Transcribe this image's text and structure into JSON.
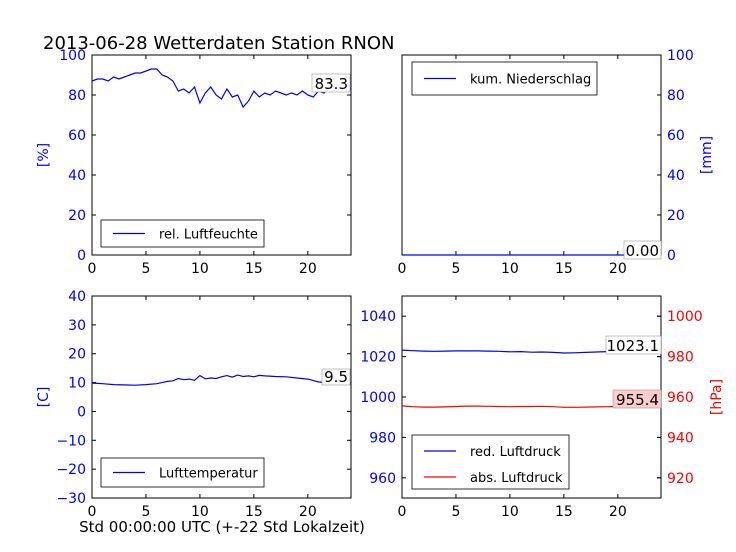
{
  "title": "2013-06-28 Wetterdaten Station RNON",
  "colors": {
    "blue": "#0000ff",
    "red": "#ff0000",
    "black": "#000000"
  },
  "chart_data": [
    {
      "type": "line",
      "id": "humidity",
      "ylabel": "[%]",
      "xlim": [
        0,
        24
      ],
      "ylim": [
        0,
        100
      ],
      "xticks": [
        "0",
        "5",
        "10",
        "15",
        "20"
      ],
      "yticks": [
        "0",
        "20",
        "40",
        "60",
        "80",
        "100"
      ],
      "legend": "lower-left",
      "series": [
        {
          "name": "rel. Luftfeuchte",
          "color": "blue",
          "x": [
            0,
            0.5,
            1,
            1.5,
            2,
            2.5,
            3,
            3.5,
            4,
            4.5,
            5,
            5.5,
            6,
            6.5,
            7,
            7.5,
            8,
            8.5,
            9,
            9.5,
            10,
            10.5,
            11,
            11.5,
            12,
            12.5,
            13,
            13.5,
            14,
            14.5,
            15,
            15.5,
            16,
            16.5,
            17,
            17.5,
            18,
            18.5,
            19,
            19.5,
            20,
            20.5,
            21,
            21.5,
            22,
            22.5,
            23,
            23.5,
            24
          ],
          "y": [
            87,
            88,
            88,
            87,
            89,
            88,
            89,
            90,
            91,
            91,
            92,
            93,
            93,
            90,
            89,
            87,
            82,
            83,
            81,
            84,
            76,
            81,
            84,
            80,
            78,
            83,
            79,
            80,
            74,
            77,
            82,
            79,
            81,
            80,
            82,
            81,
            80,
            81,
            80,
            82,
            80,
            79,
            82,
            81,
            84,
            82,
            83,
            82,
            83.3
          ]
        }
      ],
      "annotation": "83.3"
    },
    {
      "type": "line",
      "id": "precipitation",
      "ylabel": "[mm]",
      "xlim": [
        0,
        24
      ],
      "ylim": [
        0,
        100
      ],
      "xticks": [
        "0",
        "5",
        "10",
        "15",
        "20"
      ],
      "yticks": [
        "0",
        "20",
        "40",
        "60",
        "80",
        "100"
      ],
      "legend": "top-left",
      "series": [
        {
          "name": "kum. Niederschlag",
          "color": "blue",
          "x": [
            0,
            24
          ],
          "y": [
            0,
            0
          ]
        }
      ],
      "annotation": "0.00"
    },
    {
      "type": "line",
      "id": "temperature",
      "ylabel": "[C]",
      "xlabel": "Std 00:00:00 UTC (+-22 Std Lokalzeit)",
      "xlim": [
        0,
        24
      ],
      "ylim": [
        -30,
        40
      ],
      "xticks": [
        "0",
        "5",
        "10",
        "15",
        "20"
      ],
      "yticks": [
        "−30",
        "−20",
        "−10",
        "0",
        "10",
        "20",
        "30",
        "40"
      ],
      "legend": "lower-left",
      "series": [
        {
          "name": "Lufttemperatur",
          "color": "blue",
          "x": [
            0,
            1,
            2,
            3,
            4,
            5,
            6,
            7,
            7.5,
            8,
            8.5,
            9,
            9.5,
            10,
            10.5,
            11,
            11.5,
            12,
            12.5,
            13,
            13.5,
            14,
            14.5,
            15,
            15.5,
            16,
            17,
            18,
            19,
            20,
            21,
            22,
            23,
            24
          ],
          "y": [
            9.8,
            9.6,
            9.3,
            9.2,
            9.1,
            9.3,
            9.6,
            10.4,
            10.6,
            11.4,
            11.0,
            11.2,
            10.8,
            12.4,
            11.3,
            11.6,
            11.4,
            12.0,
            12.4,
            11.9,
            12.6,
            12.1,
            12.3,
            12.0,
            12.5,
            12.3,
            12.1,
            12.0,
            11.6,
            11.2,
            10.2,
            9.9,
            9.6,
            9.5
          ]
        }
      ],
      "annotation": "9.5"
    },
    {
      "type": "line",
      "id": "pressure",
      "ylabel_right": "[hPa]",
      "xlim": [
        0,
        24
      ],
      "ylim_left": [
        950,
        1050
      ],
      "ylim_right": [
        910,
        1010
      ],
      "xticks": [
        "0",
        "5",
        "10",
        "15",
        "20"
      ],
      "yticks_left": [
        "960",
        "980",
        "1000",
        "1020",
        "1040"
      ],
      "yticks_right": [
        "920",
        "940",
        "960",
        "980",
        "1000"
      ],
      "legend": "lower-left",
      "series": [
        {
          "name": "red. Luftdruck",
          "color": "blue",
          "axis": "left",
          "x": [
            0,
            1,
            2,
            3,
            4,
            5,
            6,
            7,
            8,
            9,
            10,
            11,
            12,
            13,
            14,
            15,
            16,
            17,
            18,
            19,
            20,
            21,
            22,
            23,
            24
          ],
          "y": [
            1023.2,
            1022.9,
            1022.7,
            1022.6,
            1022.7,
            1022.8,
            1022.8,
            1022.8,
            1022.7,
            1022.6,
            1022.4,
            1022.5,
            1022.2,
            1022.3,
            1022.1,
            1021.8,
            1021.9,
            1022.1,
            1022.3,
            1022.5,
            1022.7,
            1022.8,
            1023.0,
            1023.1,
            1023.1
          ]
        },
        {
          "name": "abs. Luftdruck",
          "color": "red",
          "axis": "right",
          "x": [
            0,
            1,
            2,
            3,
            4,
            5,
            6,
            7,
            8,
            9,
            10,
            11,
            12,
            13,
            14,
            15,
            16,
            17,
            18,
            19,
            20,
            21,
            22,
            23,
            24
          ],
          "y": [
            955.6,
            955.2,
            955.0,
            955.0,
            955.1,
            955.3,
            955.5,
            955.5,
            955.4,
            955.3,
            955.2,
            955.3,
            955.3,
            955.4,
            955.2,
            954.9,
            954.9,
            955.0,
            955.1,
            955.2,
            955.3,
            955.4,
            955.4,
            955.4,
            955.4
          ]
        }
      ],
      "annotations": [
        "1023.1",
        "955.4"
      ]
    }
  ]
}
